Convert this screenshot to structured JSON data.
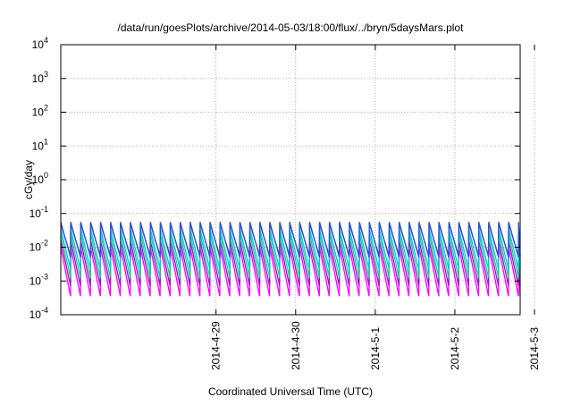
{
  "chart_data": {
    "type": "line",
    "title": "/data/run/goesPlots/archive/2014-05-03/18:00/flux/../bryn/5daysMars.plot",
    "xlabel": "Coordinated Universal Time (UTC)",
    "ylabel": "cGy/day",
    "y_scale": "log",
    "ylim_exponents": [
      -4,
      4
    ],
    "y_tick_exponents": [
      -4,
      -3,
      -2,
      -1,
      0,
      1,
      2,
      3,
      4
    ],
    "y_tick_base": "10",
    "x_ticks": [
      "2014-4-29",
      "2014-4-30",
      "2014-5-1",
      "2014-5-2",
      "2014-5-3"
    ],
    "xlim_days": [
      -1.95,
      3.82
    ],
    "x_tick_days": [
      0,
      1,
      2,
      3,
      4
    ],
    "grid": true,
    "legend": "none",
    "pattern": {
      "period_days": 0.125,
      "start_day": -1.95,
      "gap_start_day": 4.05,
      "gap_end_day": 4.3,
      "gap_floor_exponent": -4.05
    },
    "series": [
      {
        "color": "#c0002a",
        "peak_exp": -1.3,
        "trough_exp": -2.25
      },
      {
        "color": "#ff00ff",
        "peak_exp": -2.0,
        "trough_exp": -3.45
      },
      {
        "color": "#9a14c8",
        "peak_exp": -1.8,
        "trough_exp": -3.15
      },
      {
        "color": "#1ccf84",
        "peak_exp": -1.6,
        "trough_exp": -2.9
      },
      {
        "color": "#00c8e6",
        "peak_exp": -1.45,
        "trough_exp": -2.65
      },
      {
        "color": "#1f5adc",
        "peak_exp": -1.25,
        "trough_exp": -2.3
      }
    ]
  }
}
